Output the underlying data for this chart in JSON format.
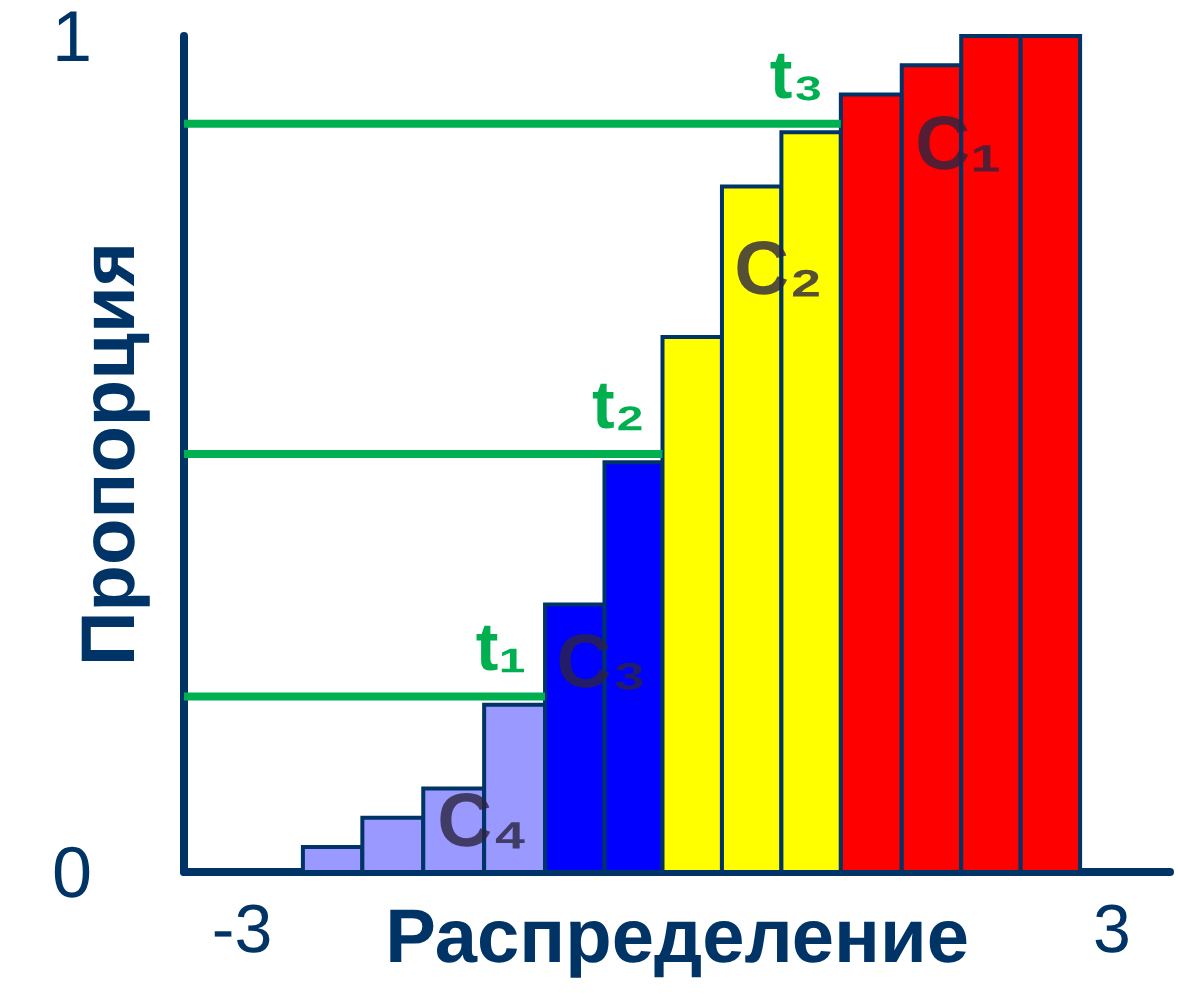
{
  "chart_data": {
    "type": "histogram",
    "xlabel": "Распределение",
    "ylabel": "Пропорция",
    "bins": [
      -2.58,
      -2.17,
      -1.75,
      -1.33,
      -0.91,
      -0.5,
      -0.1,
      0.31,
      0.72,
      1.13,
      1.55,
      1.96,
      2.37,
      2.78
    ],
    "values": [
      0.03,
      0.065,
      0.1,
      0.2,
      0.32,
      0.49,
      0.64,
      0.82,
      0.885,
      0.93,
      0.965,
      1.0,
      1.0
    ],
    "colors": [
      "#9999ff",
      "#9999ff",
      "#9999ff",
      "#9999ff",
      "#0000ff",
      "#0000ff",
      "#ffff00",
      "#ffff00",
      "#ffff00",
      "#ff0000",
      "#ff0000",
      "#ff0000",
      "#ff0000"
    ],
    "series": [
      {
        "type": "line",
        "name": "t₁",
        "color": "#00b050",
        "x": [
          -3.4,
          -0.91
        ],
        "values": [
          0.21,
          0.21
        ]
      },
      {
        "type": "line",
        "name": "t₂",
        "color": "#00b050",
        "x": [
          -3.4,
          -0.1
        ],
        "values": [
          0.5,
          0.5
        ]
      },
      {
        "type": "line",
        "name": "t₃",
        "color": "#00b050",
        "x": [
          -3.4,
          1.13
        ],
        "values": [
          0.895,
          0.895
        ]
      }
    ],
    "annotations": [
      {
        "text": "C₁",
        "x": 1.94,
        "y": 0.87
      },
      {
        "text": "C₂",
        "x": 0.7,
        "y": 0.72
      },
      {
        "text": "C₃",
        "x": -0.52,
        "y": 0.25
      },
      {
        "text": "C₄",
        "x": -1.34,
        "y": 0.06
      }
    ],
    "xlim": [
      -3.4,
      3.4
    ],
    "xticks": [
      -3,
      3
    ],
    "ylim": [
      0,
      1
    ],
    "yticks": [
      0,
      1
    ],
    "grid": false,
    "legend": false,
    "marker": "none",
    "line_style": "solid"
  }
}
